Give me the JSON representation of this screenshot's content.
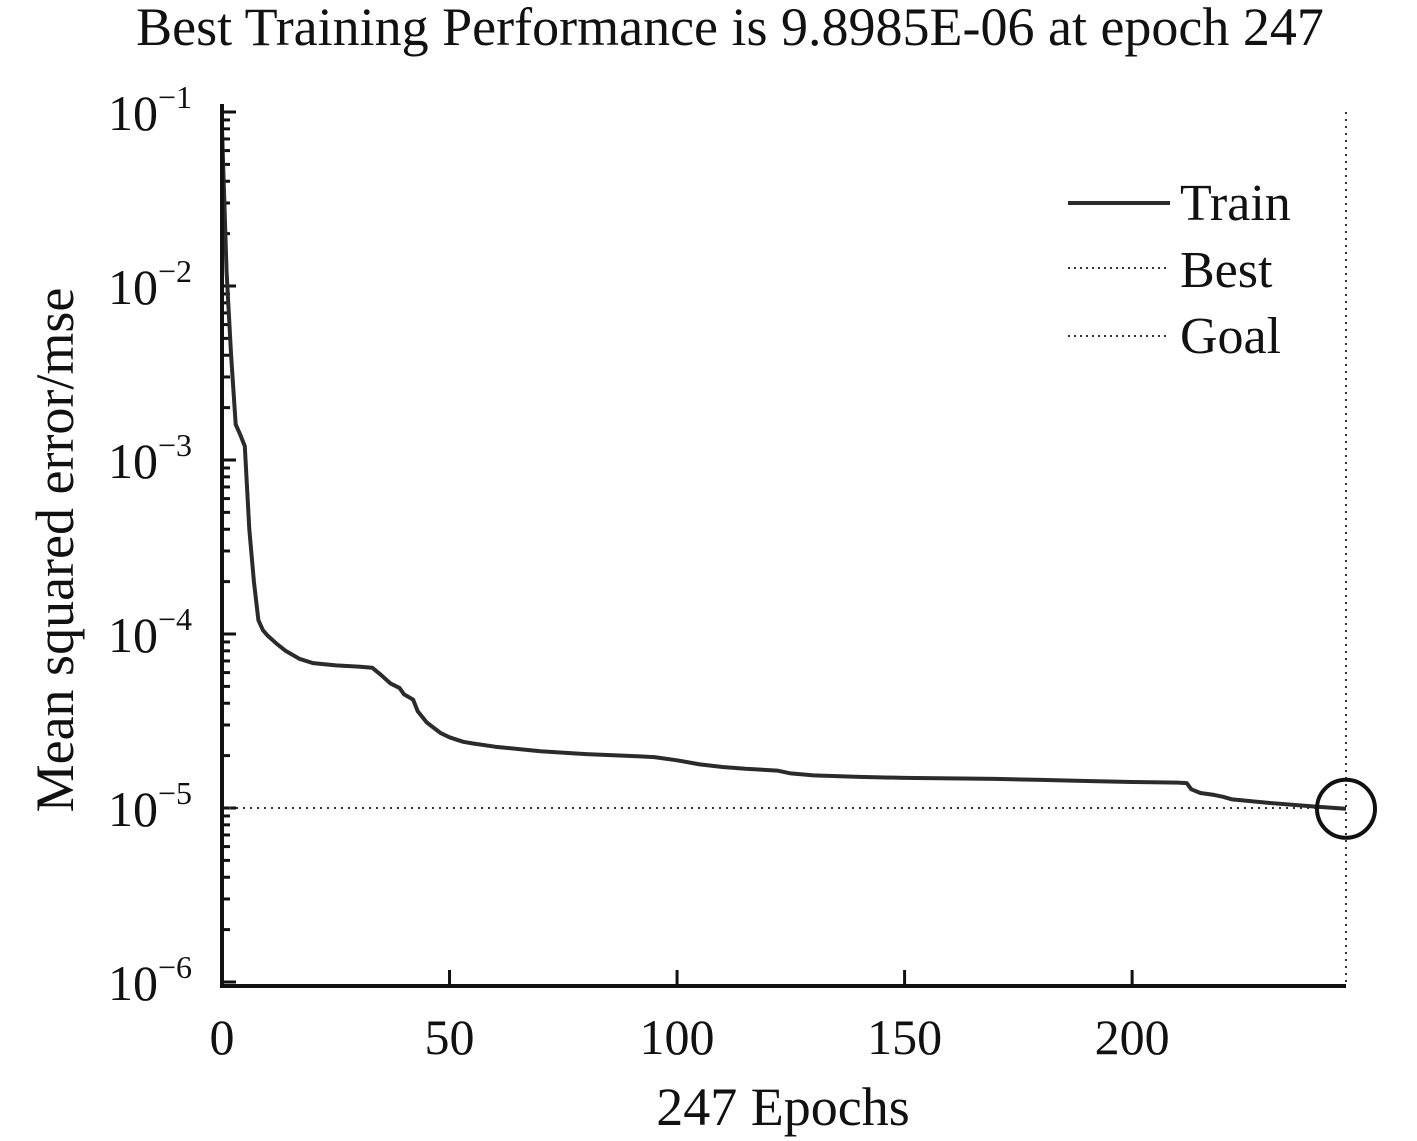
{
  "chart_data": {
    "type": "line",
    "title": "Best Training Performance is 9.8985E-06 at epoch 247",
    "xlabel": "247 Epochs",
    "ylabel": "Mean squared error/mse",
    "y_scale": "log",
    "xlim": [
      0,
      247
    ],
    "ylim": [
      1e-06,
      0.1
    ],
    "x_ticks": [
      0,
      50,
      100,
      150,
      200
    ],
    "x_tick_labels": [
      "0",
      "50",
      "100",
      "150",
      "200"
    ],
    "y_ticks": [
      {
        "value": 0.1,
        "base": "10",
        "exp": "−1"
      },
      {
        "value": 0.01,
        "base": "10",
        "exp": "−2"
      },
      {
        "value": 0.001,
        "base": "10",
        "exp": "−3"
      },
      {
        "value": 0.0001,
        "base": "10",
        "exp": "−4"
      },
      {
        "value": 1e-05,
        "base": "10",
        "exp": "−5"
      },
      {
        "value": 1e-06,
        "base": "10",
        "exp": "−6"
      }
    ],
    "grid": false,
    "legend_position": "top-right",
    "legend": [
      {
        "label": "Train",
        "style": "solid"
      },
      {
        "label": "Best",
        "style": "dotted"
      },
      {
        "label": "Goal",
        "style": "dotted"
      }
    ],
    "best": {
      "epoch": 247,
      "value": 9.8985e-06
    },
    "goal": 1e-05,
    "series": [
      {
        "name": "Train",
        "x": [
          0,
          1,
          2,
          3,
          4,
          5,
          6,
          7,
          8,
          9,
          10,
          12,
          14,
          17,
          20,
          25,
          30,
          33,
          35,
          37,
          39,
          40,
          42,
          43,
          45,
          48,
          50,
          53,
          55,
          60,
          70,
          80,
          90,
          95,
          100,
          105,
          110,
          115,
          122,
          125,
          130,
          140,
          150,
          160,
          170,
          180,
          190,
          200,
          210,
          212,
          213,
          215,
          218,
          220,
          222,
          230,
          240,
          247
        ],
        "y": [
          0.08,
          0.012,
          0.004,
          0.0016,
          0.0014,
          0.0012,
          0.0004,
          0.0002,
          0.00012,
          0.000105,
          9.8e-05,
          8.8e-05,
          8e-05,
          7.2e-05,
          6.8e-05,
          6.6e-05,
          6.5e-05,
          6.4e-05,
          5.8e-05,
          5.2e-05,
          4.9e-05,
          4.5e-05,
          4.2e-05,
          3.6e-05,
          3.1e-05,
          2.7e-05,
          2.55e-05,
          2.4e-05,
          2.35e-05,
          2.25e-05,
          2.12e-05,
          2.04e-05,
          1.99e-05,
          1.96e-05,
          1.88e-05,
          1.78e-05,
          1.72e-05,
          1.68e-05,
          1.64e-05,
          1.58e-05,
          1.54e-05,
          1.51e-05,
          1.49e-05,
          1.48e-05,
          1.47e-05,
          1.45e-05,
          1.43e-05,
          1.41e-05,
          1.4e-05,
          1.39e-05,
          1.28e-05,
          1.22e-05,
          1.19e-05,
          1.16e-05,
          1.12e-05,
          1.07e-05,
          1.02e-05,
          9.8985e-06
        ]
      }
    ]
  }
}
